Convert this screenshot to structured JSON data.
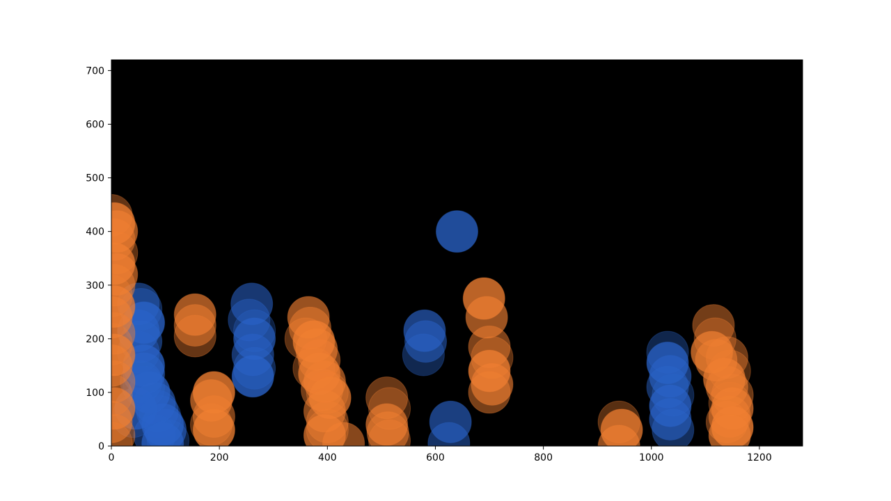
{
  "chart_data": {
    "type": "scatter",
    "title": "",
    "xlabel": "",
    "ylabel": "",
    "xlim": [
      0,
      1280
    ],
    "ylim": [
      0,
      720
    ],
    "xticks": [
      0,
      200,
      400,
      600,
      800,
      1000,
      1200
    ],
    "yticks": [
      0,
      100,
      200,
      300,
      400,
      500,
      600,
      700
    ],
    "grid": false,
    "legend": "none",
    "background_color": "#000000",
    "marker": "circle",
    "series": [
      {
        "color": "#2a63c8",
        "points": [
          [
            40,
            55
          ],
          [
            45,
            70
          ],
          [
            50,
            265
          ],
          [
            55,
            255
          ],
          [
            60,
            230
          ],
          [
            50,
            215
          ],
          [
            55,
            195
          ],
          [
            50,
            175
          ],
          [
            60,
            150
          ],
          [
            60,
            135
          ],
          [
            55,
            120
          ],
          [
            60,
            110
          ],
          [
            70,
            100
          ],
          [
            80,
            80
          ],
          [
            85,
            65
          ],
          [
            90,
            55
          ],
          [
            95,
            40
          ],
          [
            100,
            30
          ],
          [
            80,
            20
          ],
          [
            105,
            10
          ],
          [
            95,
            5
          ],
          [
            260,
            265
          ],
          [
            255,
            235
          ],
          [
            265,
            215
          ],
          [
            265,
            200
          ],
          [
            262,
            170
          ],
          [
            265,
            145
          ],
          [
            262,
            130
          ],
          [
            580,
            215
          ],
          [
            582,
            195
          ],
          [
            578,
            170
          ],
          [
            640,
            400
          ],
          [
            628,
            45
          ],
          [
            625,
            5
          ],
          [
            1030,
            175
          ],
          [
            1030,
            155
          ],
          [
            1035,
            130
          ],
          [
            1030,
            110
          ],
          [
            1040,
            95
          ],
          [
            1035,
            75
          ],
          [
            1035,
            50
          ],
          [
            1040,
            30
          ]
        ]
      },
      {
        "color": "#f07f32",
        "points": [
          [
            0,
            430
          ],
          [
            5,
            415
          ],
          [
            10,
            400
          ],
          [
            5,
            385
          ],
          [
            10,
            360
          ],
          [
            5,
            340
          ],
          [
            10,
            320
          ],
          [
            5,
            300
          ],
          [
            0,
            280
          ],
          [
            5,
            260
          ],
          [
            0,
            240
          ],
          [
            5,
            210
          ],
          [
            0,
            190
          ],
          [
            5,
            170
          ],
          [
            0,
            150
          ],
          [
            5,
            120
          ],
          [
            0,
            95
          ],
          [
            5,
            70
          ],
          [
            0,
            45
          ],
          [
            5,
            20
          ],
          [
            0,
            5
          ],
          [
            155,
            245
          ],
          [
            155,
            225
          ],
          [
            155,
            205
          ],
          [
            190,
            100
          ],
          [
            185,
            85
          ],
          [
            190,
            55
          ],
          [
            185,
            40
          ],
          [
            190,
            30
          ],
          [
            365,
            240
          ],
          [
            368,
            220
          ],
          [
            360,
            200
          ],
          [
            375,
            195
          ],
          [
            380,
            180
          ],
          [
            385,
            160
          ],
          [
            375,
            145
          ],
          [
            385,
            135
          ],
          [
            395,
            120
          ],
          [
            390,
            105
          ],
          [
            400,
            100
          ],
          [
            405,
            90
          ],
          [
            395,
            65
          ],
          [
            400,
            45
          ],
          [
            400,
            30
          ],
          [
            395,
            20
          ],
          [
            430,
            5
          ],
          [
            510,
            90
          ],
          [
            515,
            70
          ],
          [
            510,
            40
          ],
          [
            512,
            25
          ],
          [
            515,
            10
          ],
          [
            690,
            275
          ],
          [
            695,
            240
          ],
          [
            700,
            185
          ],
          [
            705,
            165
          ],
          [
            700,
            140
          ],
          [
            705,
            115
          ],
          [
            700,
            100
          ],
          [
            940,
            45
          ],
          [
            945,
            30
          ],
          [
            940,
            0
          ],
          [
            1115,
            225
          ],
          [
            1118,
            200
          ],
          [
            1112,
            175
          ],
          [
            1120,
            160
          ],
          [
            1140,
            165
          ],
          [
            1145,
            140
          ],
          [
            1135,
            125
          ],
          [
            1140,
            110
          ],
          [
            1150,
            95
          ],
          [
            1145,
            80
          ],
          [
            1150,
            70
          ],
          [
            1145,
            55
          ],
          [
            1140,
            45
          ],
          [
            1150,
            35
          ],
          [
            1145,
            20
          ]
        ]
      }
    ]
  }
}
